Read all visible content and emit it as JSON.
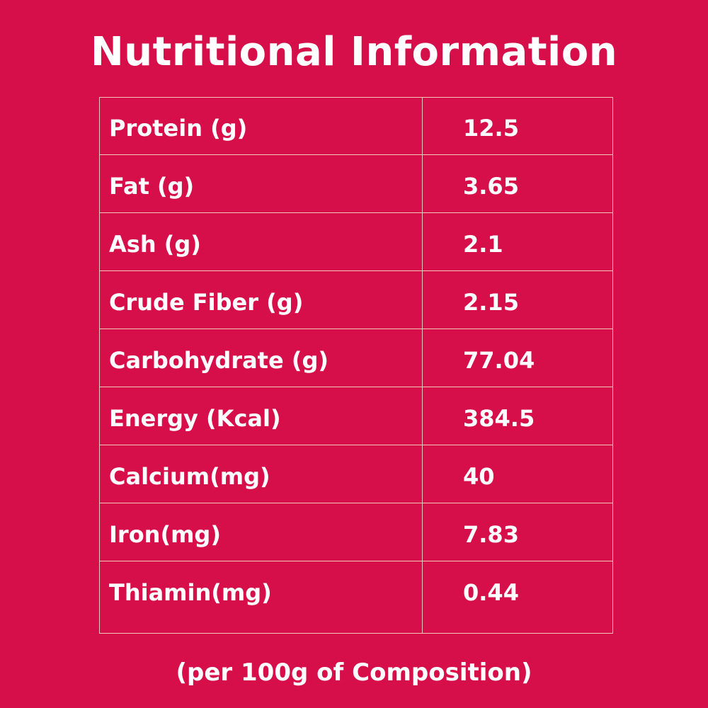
{
  "title": "Nutritional Information",
  "rows": [
    {
      "label": "Protein (g)",
      "value": "12.5"
    },
    {
      "label": "Fat (g)",
      "value": "3.65"
    },
    {
      "label": "Ash (g)",
      "value": "2.1"
    },
    {
      "label": "Crude Fiber (g)",
      "value": "2.15"
    },
    {
      "label": "Carbohydrate (g)",
      "value": "77.04"
    },
    {
      "label": "Energy (Kcal)",
      "value": "384.5"
    },
    {
      "label": "Calcium(mg)",
      "value": "40"
    },
    {
      "label": "Iron(mg)",
      "value": "7.83"
    },
    {
      "label": "Thiamin(mg)",
      "value": "0.44"
    }
  ],
  "footnote": "(per 100g of Composition)",
  "colors": {
    "background": "#d60f4a",
    "text": "#ffffff",
    "border": "#f2c9b8"
  }
}
